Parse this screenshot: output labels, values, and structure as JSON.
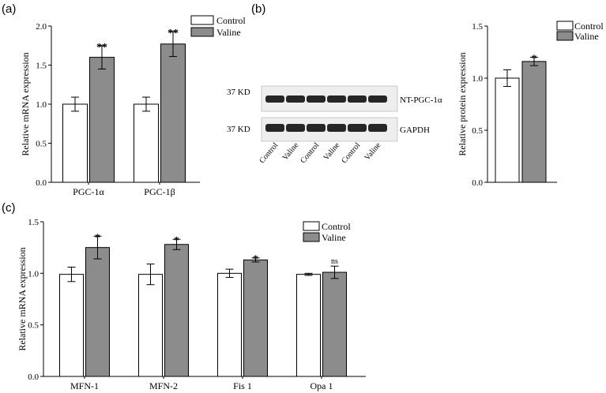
{
  "panel_labels": {
    "a": "(a)",
    "b": "(b)",
    "c": "(c)"
  },
  "colors": {
    "control": "#ffffff",
    "valine": "#8c8c8c",
    "stroke": "#000000",
    "band": "#262626",
    "blot_bg": "#eeeeee"
  },
  "legend": {
    "control": "Control",
    "valine": "Valine"
  },
  "blot": {
    "band_labels": [
      "NT-PGC-1α",
      "GAPDH"
    ],
    "kd_labels": [
      "37 KD",
      "37 KD"
    ],
    "lanes": [
      "Control",
      "Valine",
      "Control",
      "Valine",
      "Control",
      "Valine"
    ]
  },
  "chart_data": [
    {
      "id": "a",
      "type": "bar",
      "categories": [
        "PGC-1α",
        "PGC-1β"
      ],
      "series": [
        {
          "name": "Control",
          "values": [
            1.0,
            1.0
          ],
          "errors": [
            0.09,
            0.09
          ]
        },
        {
          "name": "Valine",
          "values": [
            1.6,
            1.77
          ],
          "errors": [
            0.15,
            0.16
          ]
        }
      ],
      "significance": [
        "**",
        "**"
      ],
      "ylabel": "Relative mRNA expression",
      "ylim": [
        0,
        2.0
      ],
      "yticks": [
        "0.0",
        "0.5",
        "1.0",
        "1.5",
        "2.0"
      ],
      "legend_position": "top-right"
    },
    {
      "id": "b",
      "type": "bar",
      "categories": [
        ""
      ],
      "series": [
        {
          "name": "Control",
          "values": [
            1.0
          ],
          "errors": [
            0.08
          ]
        },
        {
          "name": "Valine",
          "values": [
            1.16
          ],
          "errors": [
            0.04
          ]
        }
      ],
      "significance": [
        "*"
      ],
      "ylabel": "Relative protein expression",
      "ylim": [
        0,
        1.5
      ],
      "yticks": [
        "0.0",
        "0.5",
        "1.0",
        "1.5"
      ],
      "legend_position": "top-right"
    },
    {
      "id": "c",
      "type": "bar",
      "categories": [
        "MFN-1",
        "MFN-2",
        "Fis 1",
        "Opa 1"
      ],
      "series": [
        {
          "name": "Control",
          "values": [
            0.99,
            0.99,
            1.0,
            0.99
          ],
          "errors": [
            0.07,
            0.1,
            0.04,
            0.01
          ]
        },
        {
          "name": "Valine",
          "values": [
            1.25,
            1.28,
            1.13,
            1.01
          ],
          "errors": [
            0.11,
            0.05,
            0.02,
            0.06
          ]
        }
      ],
      "significance": [
        "*",
        "*",
        "*",
        "ns"
      ],
      "ylabel": "Relative mRNA expression",
      "ylim": [
        0,
        1.5
      ],
      "yticks": [
        "0.0",
        "0.5",
        "1.0",
        "1.5"
      ],
      "legend_position": "top-right"
    }
  ]
}
